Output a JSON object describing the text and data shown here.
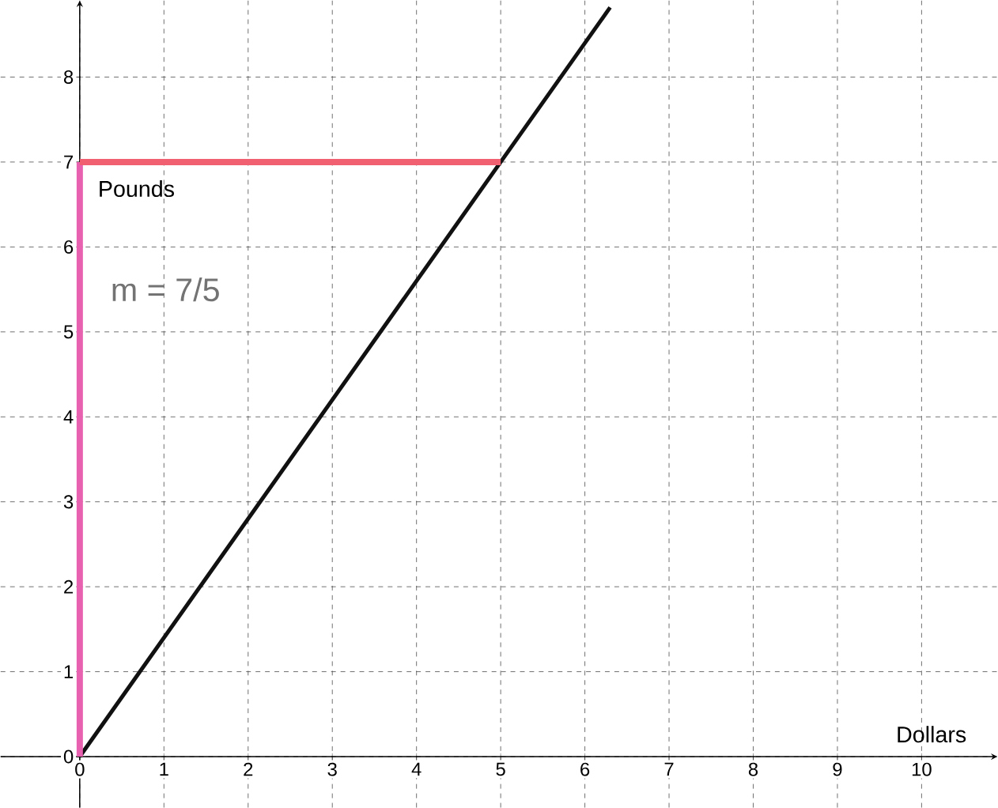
{
  "chart_data": {
    "type": "line",
    "xlabel": "Dollars",
    "ylabel": "Pounds",
    "xlim": [
      -0.94,
      10.9
    ],
    "ylim": [
      -0.6,
      8.9
    ],
    "xticks": [
      0,
      1,
      2,
      3,
      4,
      5,
      6,
      7,
      8,
      9,
      10
    ],
    "yticks": [
      0,
      1,
      2,
      3,
      4,
      5,
      6,
      7,
      8
    ],
    "grid": true,
    "line_style": "solid",
    "marker": "none",
    "series": [
      {
        "color": "#111111",
        "x": [
          0,
          5,
          6.3
        ],
        "values": [
          0,
          7,
          8.82
        ]
      },
      {
        "color": "#e860b0",
        "x": [
          0,
          0
        ],
        "values": [
          0,
          7
        ]
      },
      {
        "color": "#f06070",
        "x": [
          0,
          5
        ],
        "values": [
          7,
          7
        ]
      }
    ],
    "annotations": [
      "m = 7/5"
    ]
  }
}
